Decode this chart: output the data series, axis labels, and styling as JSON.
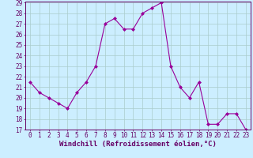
{
  "x": [
    0,
    1,
    2,
    3,
    4,
    5,
    6,
    7,
    8,
    9,
    10,
    11,
    12,
    13,
    14,
    15,
    16,
    17,
    18,
    19,
    20,
    21,
    22,
    23
  ],
  "y": [
    21.5,
    20.5,
    20.0,
    19.5,
    19.0,
    20.5,
    21.5,
    23.0,
    27.0,
    27.5,
    26.5,
    26.5,
    28.0,
    28.5,
    29.0,
    23.0,
    21.0,
    20.0,
    21.5,
    17.5,
    17.5,
    18.5,
    18.5,
    17.0
  ],
  "line_color": "#990099",
  "marker": "D",
  "marker_size": 2.0,
  "bg_color": "#cceeff",
  "grid_color": "#aacccc",
  "xlabel": "Windchill (Refroidissement éolien,°C)",
  "ylabel": "",
  "ylim": [
    17,
    29
  ],
  "xlim": [
    -0.5,
    23.5
  ],
  "yticks": [
    17,
    18,
    19,
    20,
    21,
    22,
    23,
    24,
    25,
    26,
    27,
    28,
    29
  ],
  "xticks": [
    0,
    1,
    2,
    3,
    4,
    5,
    6,
    7,
    8,
    9,
    10,
    11,
    12,
    13,
    14,
    15,
    16,
    17,
    18,
    19,
    20,
    21,
    22,
    23
  ],
  "axis_label_color": "#660066",
  "tick_color": "#660066",
  "font_size_xlabel": 6.5,
  "font_size_ticks": 5.5,
  "linewidth": 0.8
}
